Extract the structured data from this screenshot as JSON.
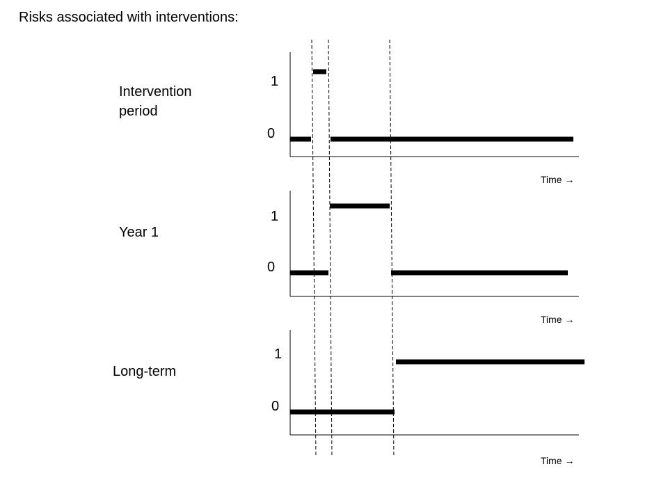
{
  "title": "Risks associated with interventions:",
  "panels": [
    {
      "label_line1": "Intervention",
      "label_line2": "period",
      "y_tick_high": "1",
      "y_tick_low": "0",
      "time_label": "Time →",
      "segments": [
        {
          "level": 0,
          "start": 0,
          "end": 1
        },
        {
          "level": 1,
          "start": 1,
          "end": 2
        },
        {
          "level": 0,
          "start": 2,
          "end": 5
        }
      ]
    },
    {
      "label_line1": "Year 1",
      "label_line2": "",
      "y_tick_high": "1",
      "y_tick_low": "0",
      "time_label": "Time →",
      "segments": [
        {
          "level": 0,
          "start": 0,
          "end": 2
        },
        {
          "level": 1,
          "start": 2,
          "end": 3
        },
        {
          "level": 0,
          "start": 3,
          "end": 5
        }
      ]
    },
    {
      "label_line1": "Long-term",
      "label_line2": "",
      "y_tick_high": "1",
      "y_tick_low": "0",
      "time_label": "Time →",
      "segments": [
        {
          "level": 0,
          "start": 0,
          "end": 3
        },
        {
          "level": 1,
          "start": 3,
          "end": 5
        }
      ]
    }
  ]
}
